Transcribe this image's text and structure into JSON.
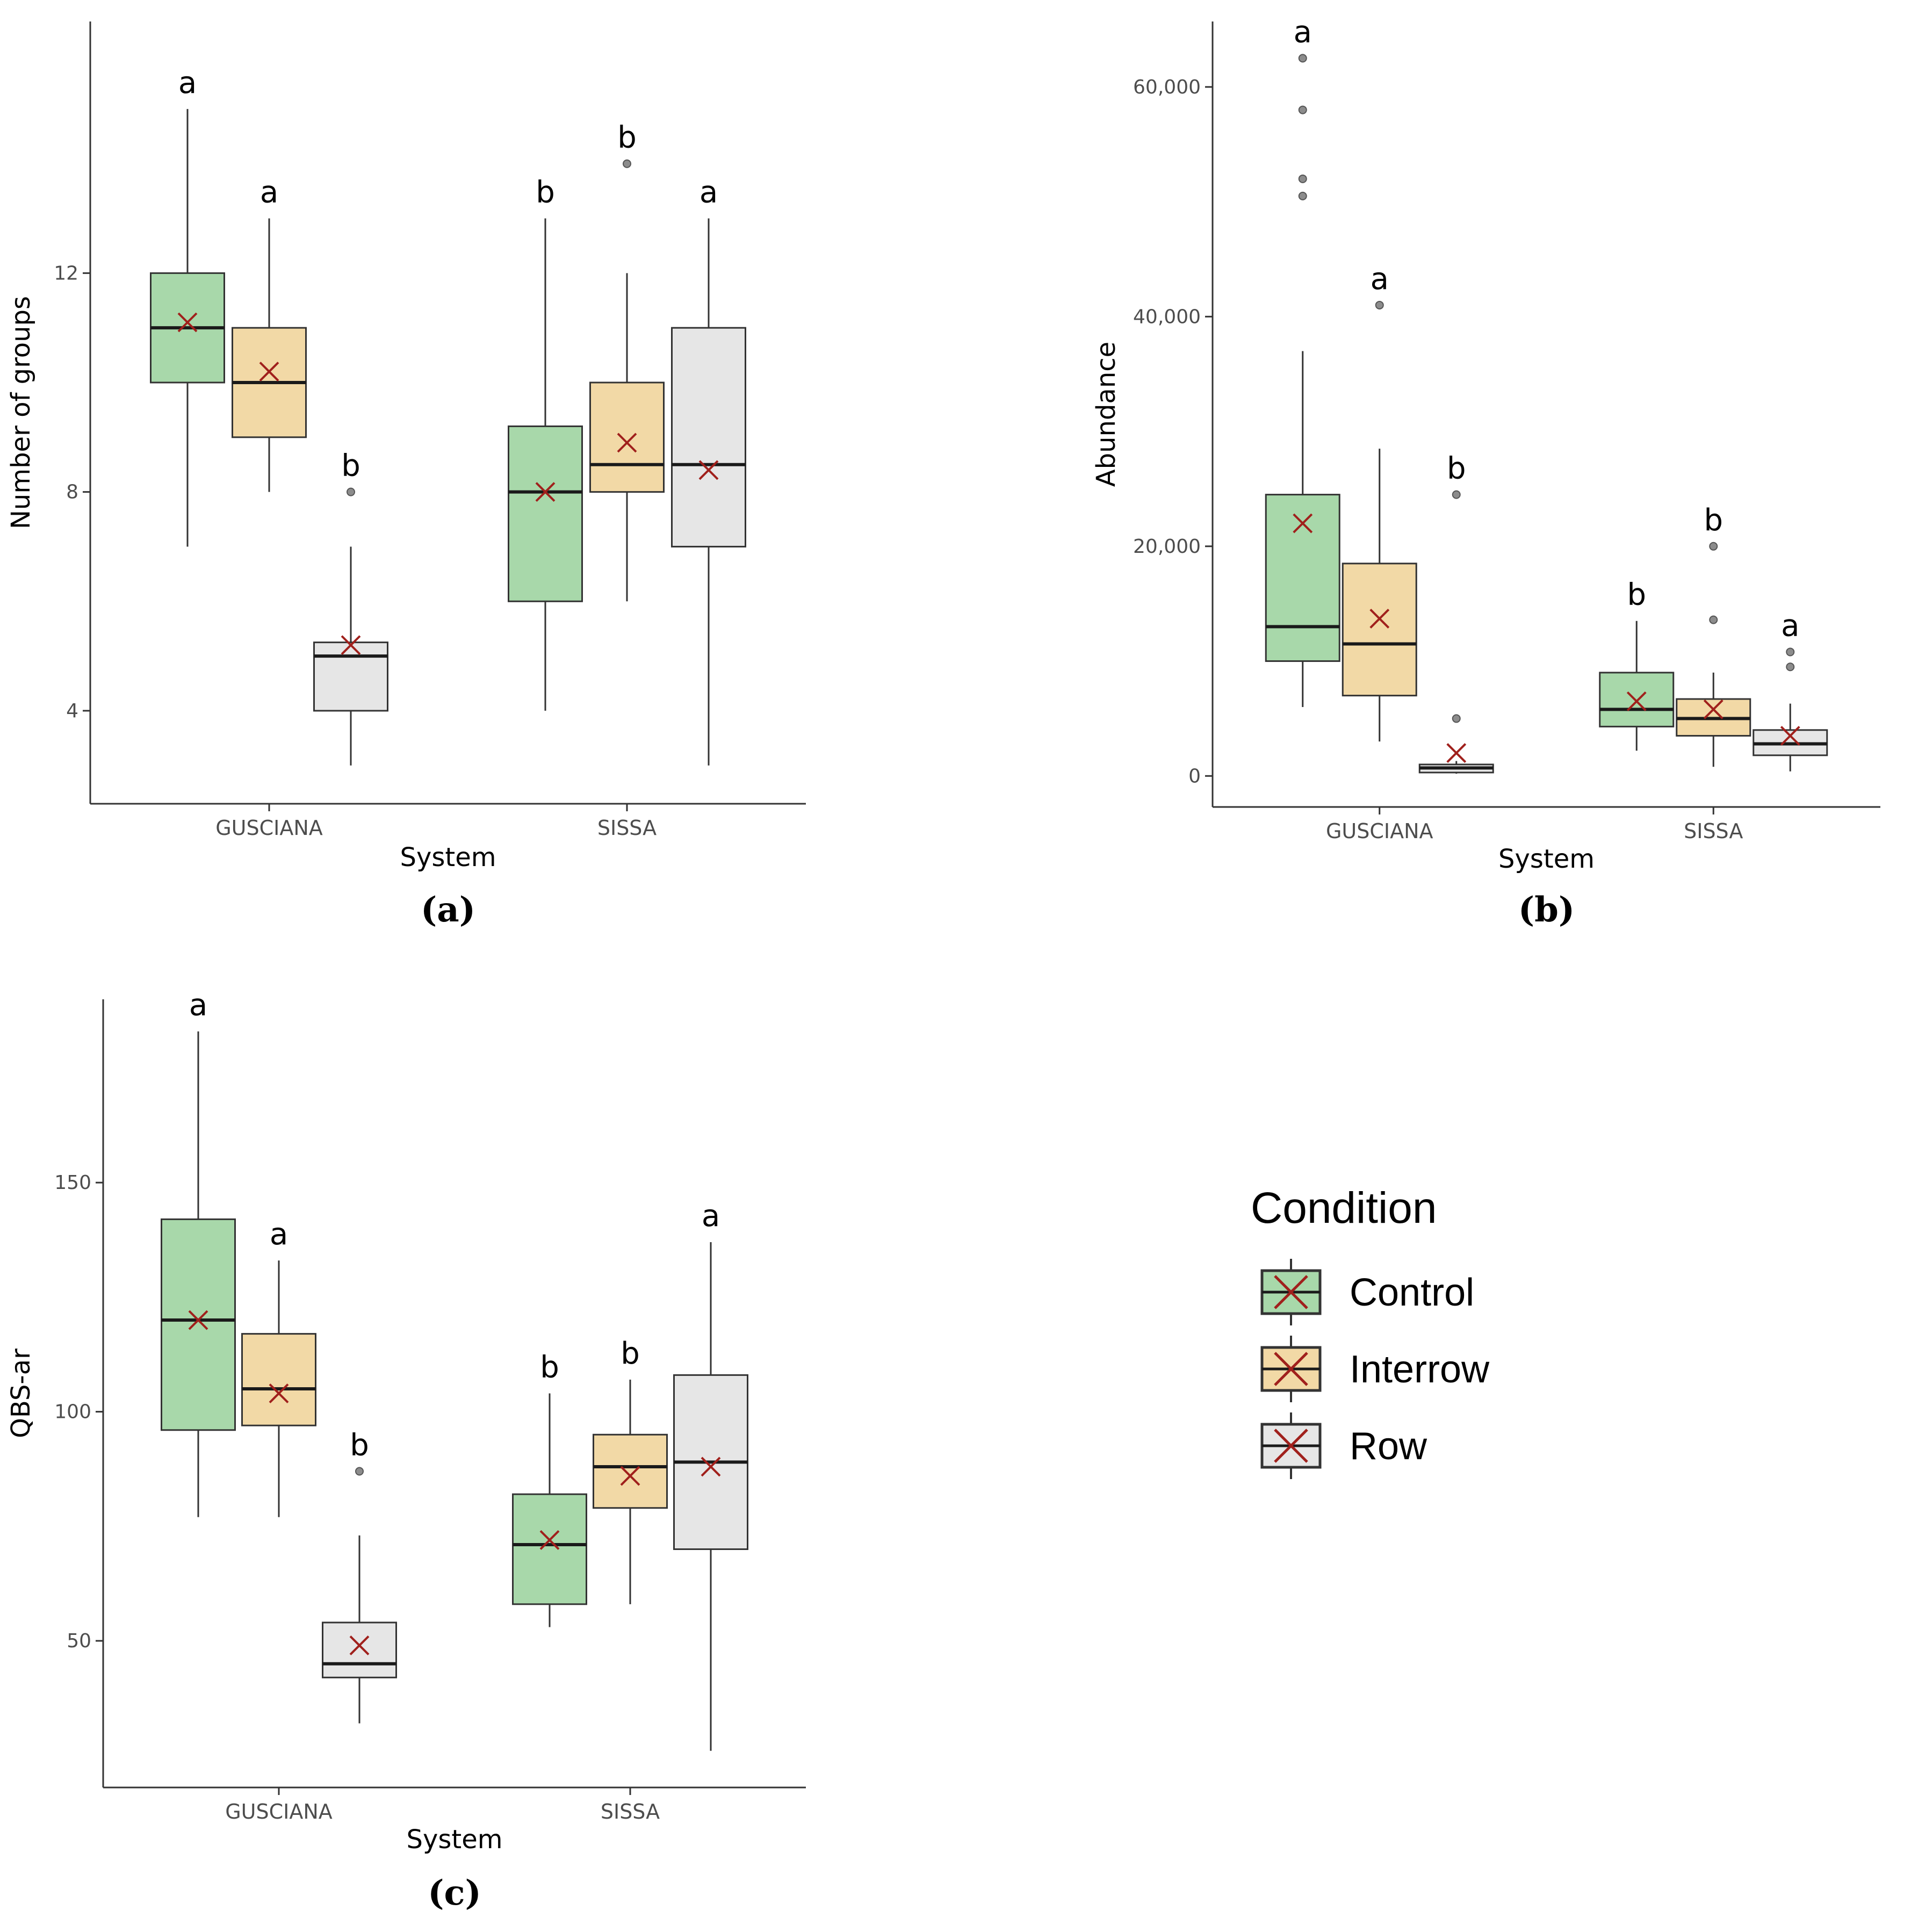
{
  "colors": {
    "Control": "#a8d8aa",
    "Interrow": "#f2d9a6",
    "Row": "#e6e6e6",
    "mean_marker": "#a0201c",
    "outline": "#333333",
    "outlier": "#8c8c8c"
  },
  "legend": {
    "title": "Condition",
    "items": [
      "Control",
      "Interrow",
      "Row"
    ]
  },
  "chart_data": [
    {
      "id": "a",
      "panel_label": "(a)",
      "type": "box",
      "xlabel": "System",
      "ylabel": "Number of groups",
      "ylim": [
        2.3,
        16.6
      ],
      "yticks": [
        4,
        8,
        12
      ],
      "ytick_labels": [
        "4",
        "8",
        "12"
      ],
      "categories": [
        "GUSCIANA",
        "SISSA"
      ],
      "series": [
        {
          "name": "Control",
          "boxes": [
            {
              "category": "GUSCIANA",
              "min": 7,
              "q1": 10,
              "median": 11,
              "q3": 12,
              "max": 15,
              "mean": 11.1,
              "outliers": [],
              "letter": "a"
            },
            {
              "category": "SISSA",
              "min": 4,
              "q1": 6,
              "median": 8,
              "q3": 9.2,
              "max": 13,
              "mean": 8.0,
              "outliers": [],
              "letter": "b"
            }
          ]
        },
        {
          "name": "Interrow",
          "boxes": [
            {
              "category": "GUSCIANA",
              "min": 8,
              "q1": 9,
              "median": 10,
              "q3": 11,
              "max": 13,
              "mean": 10.2,
              "outliers": [],
              "letter": "a"
            },
            {
              "category": "SISSA",
              "min": 6,
              "q1": 8,
              "median": 8.5,
              "q3": 10,
              "max": 12,
              "mean": 8.9,
              "outliers": [
                14
              ],
              "letter": "b"
            }
          ]
        },
        {
          "name": "Row",
          "boxes": [
            {
              "category": "GUSCIANA",
              "min": 3,
              "q1": 4,
              "median": 5,
              "q3": 5.25,
              "max": 7,
              "mean": 5.2,
              "outliers": [
                8
              ],
              "letter": "b"
            },
            {
              "category": "SISSA",
              "min": 3,
              "q1": 7,
              "median": 8.5,
              "q3": 11,
              "max": 13,
              "mean": 8.4,
              "outliers": [],
              "letter": "a"
            }
          ]
        }
      ]
    },
    {
      "id": "b",
      "panel_label": "(b)",
      "type": "box",
      "xlabel": "System",
      "ylabel": "Abundance",
      "ylim": [
        -2700,
        65700
      ],
      "yticks": [
        0,
        20000,
        40000,
        60000
      ],
      "ytick_labels": [
        "0",
        "20,000",
        "40,000",
        "60,000"
      ],
      "categories": [
        "GUSCIANA",
        "SISSA"
      ],
      "series": [
        {
          "name": "Control",
          "boxes": [
            {
              "category": "GUSCIANA",
              "min": 6000,
              "q1": 10000,
              "median": 13000,
              "q3": 24500,
              "max": 37000,
              "mean": 22000,
              "outliers": [
                50500,
                52000,
                58000,
                62500
              ],
              "letter": "a"
            },
            {
              "category": "SISSA",
              "min": 2200,
              "q1": 4300,
              "median": 5800,
              "q3": 9000,
              "max": 13500,
              "mean": 6500,
              "outliers": [],
              "letter": "b"
            }
          ]
        },
        {
          "name": "Interrow",
          "boxes": [
            {
              "category": "GUSCIANA",
              "min": 3000,
              "q1": 7000,
              "median": 11500,
              "q3": 18500,
              "max": 28500,
              "mean": 13700,
              "outliers": [
                41000
              ],
              "letter": "a"
            },
            {
              "category": "SISSA",
              "min": 800,
              "q1": 3500,
              "median": 5000,
              "q3": 6700,
              "max": 9000,
              "mean": 5800,
              "outliers": [
                13600,
                20000
              ],
              "letter": "b"
            }
          ]
        },
        {
          "name": "Row",
          "boxes": [
            {
              "category": "GUSCIANA",
              "min": 200,
              "q1": 300,
              "median": 700,
              "q3": 1000,
              "max": 1300,
              "mean": 2000,
              "outliers": [
                5000,
                24500
              ],
              "letter": "b"
            },
            {
              "category": "SISSA",
              "min": 400,
              "q1": 1800,
              "median": 2800,
              "q3": 4000,
              "max": 6300,
              "mean": 3500,
              "outliers": [
                9500,
                10800
              ],
              "letter": "a"
            }
          ]
        }
      ]
    },
    {
      "id": "c",
      "panel_label": "(c)",
      "type": "box",
      "xlabel": "System",
      "ylabel": "QBS-ar",
      "ylim": [
        18,
        190
      ],
      "yticks": [
        50,
        100,
        150
      ],
      "ytick_labels": [
        "50",
        "100",
        "150"
      ],
      "categories": [
        "GUSCIANA",
        "SISSA"
      ],
      "series": [
        {
          "name": "Control",
          "boxes": [
            {
              "category": "GUSCIANA",
              "min": 77,
              "q1": 96,
              "median": 120,
              "q3": 142,
              "max": 183,
              "mean": 120,
              "outliers": [],
              "letter": "a"
            },
            {
              "category": "SISSA",
              "min": 53,
              "q1": 58,
              "median": 71,
              "q3": 82,
              "max": 104,
              "mean": 72,
              "outliers": [],
              "letter": "b"
            }
          ]
        },
        {
          "name": "Interrow",
          "boxes": [
            {
              "category": "GUSCIANA",
              "min": 77,
              "q1": 97,
              "median": 105,
              "q3": 117,
              "max": 133,
              "mean": 104,
              "outliers": [],
              "letter": "a"
            },
            {
              "category": "SISSA",
              "min": 58,
              "q1": 79,
              "median": 88,
              "q3": 95,
              "max": 107,
              "mean": 86,
              "outliers": [],
              "letter": "b"
            }
          ]
        },
        {
          "name": "Row",
          "boxes": [
            {
              "category": "GUSCIANA",
              "min": 32,
              "q1": 42,
              "median": 45,
              "q3": 54,
              "max": 73,
              "mean": 49,
              "outliers": [
                87
              ],
              "letter": "b"
            },
            {
              "category": "SISSA",
              "min": 26,
              "q1": 70,
              "median": 89,
              "q3": 108,
              "max": 137,
              "mean": 88,
              "outliers": [],
              "letter": "a"
            }
          ]
        }
      ]
    }
  ]
}
